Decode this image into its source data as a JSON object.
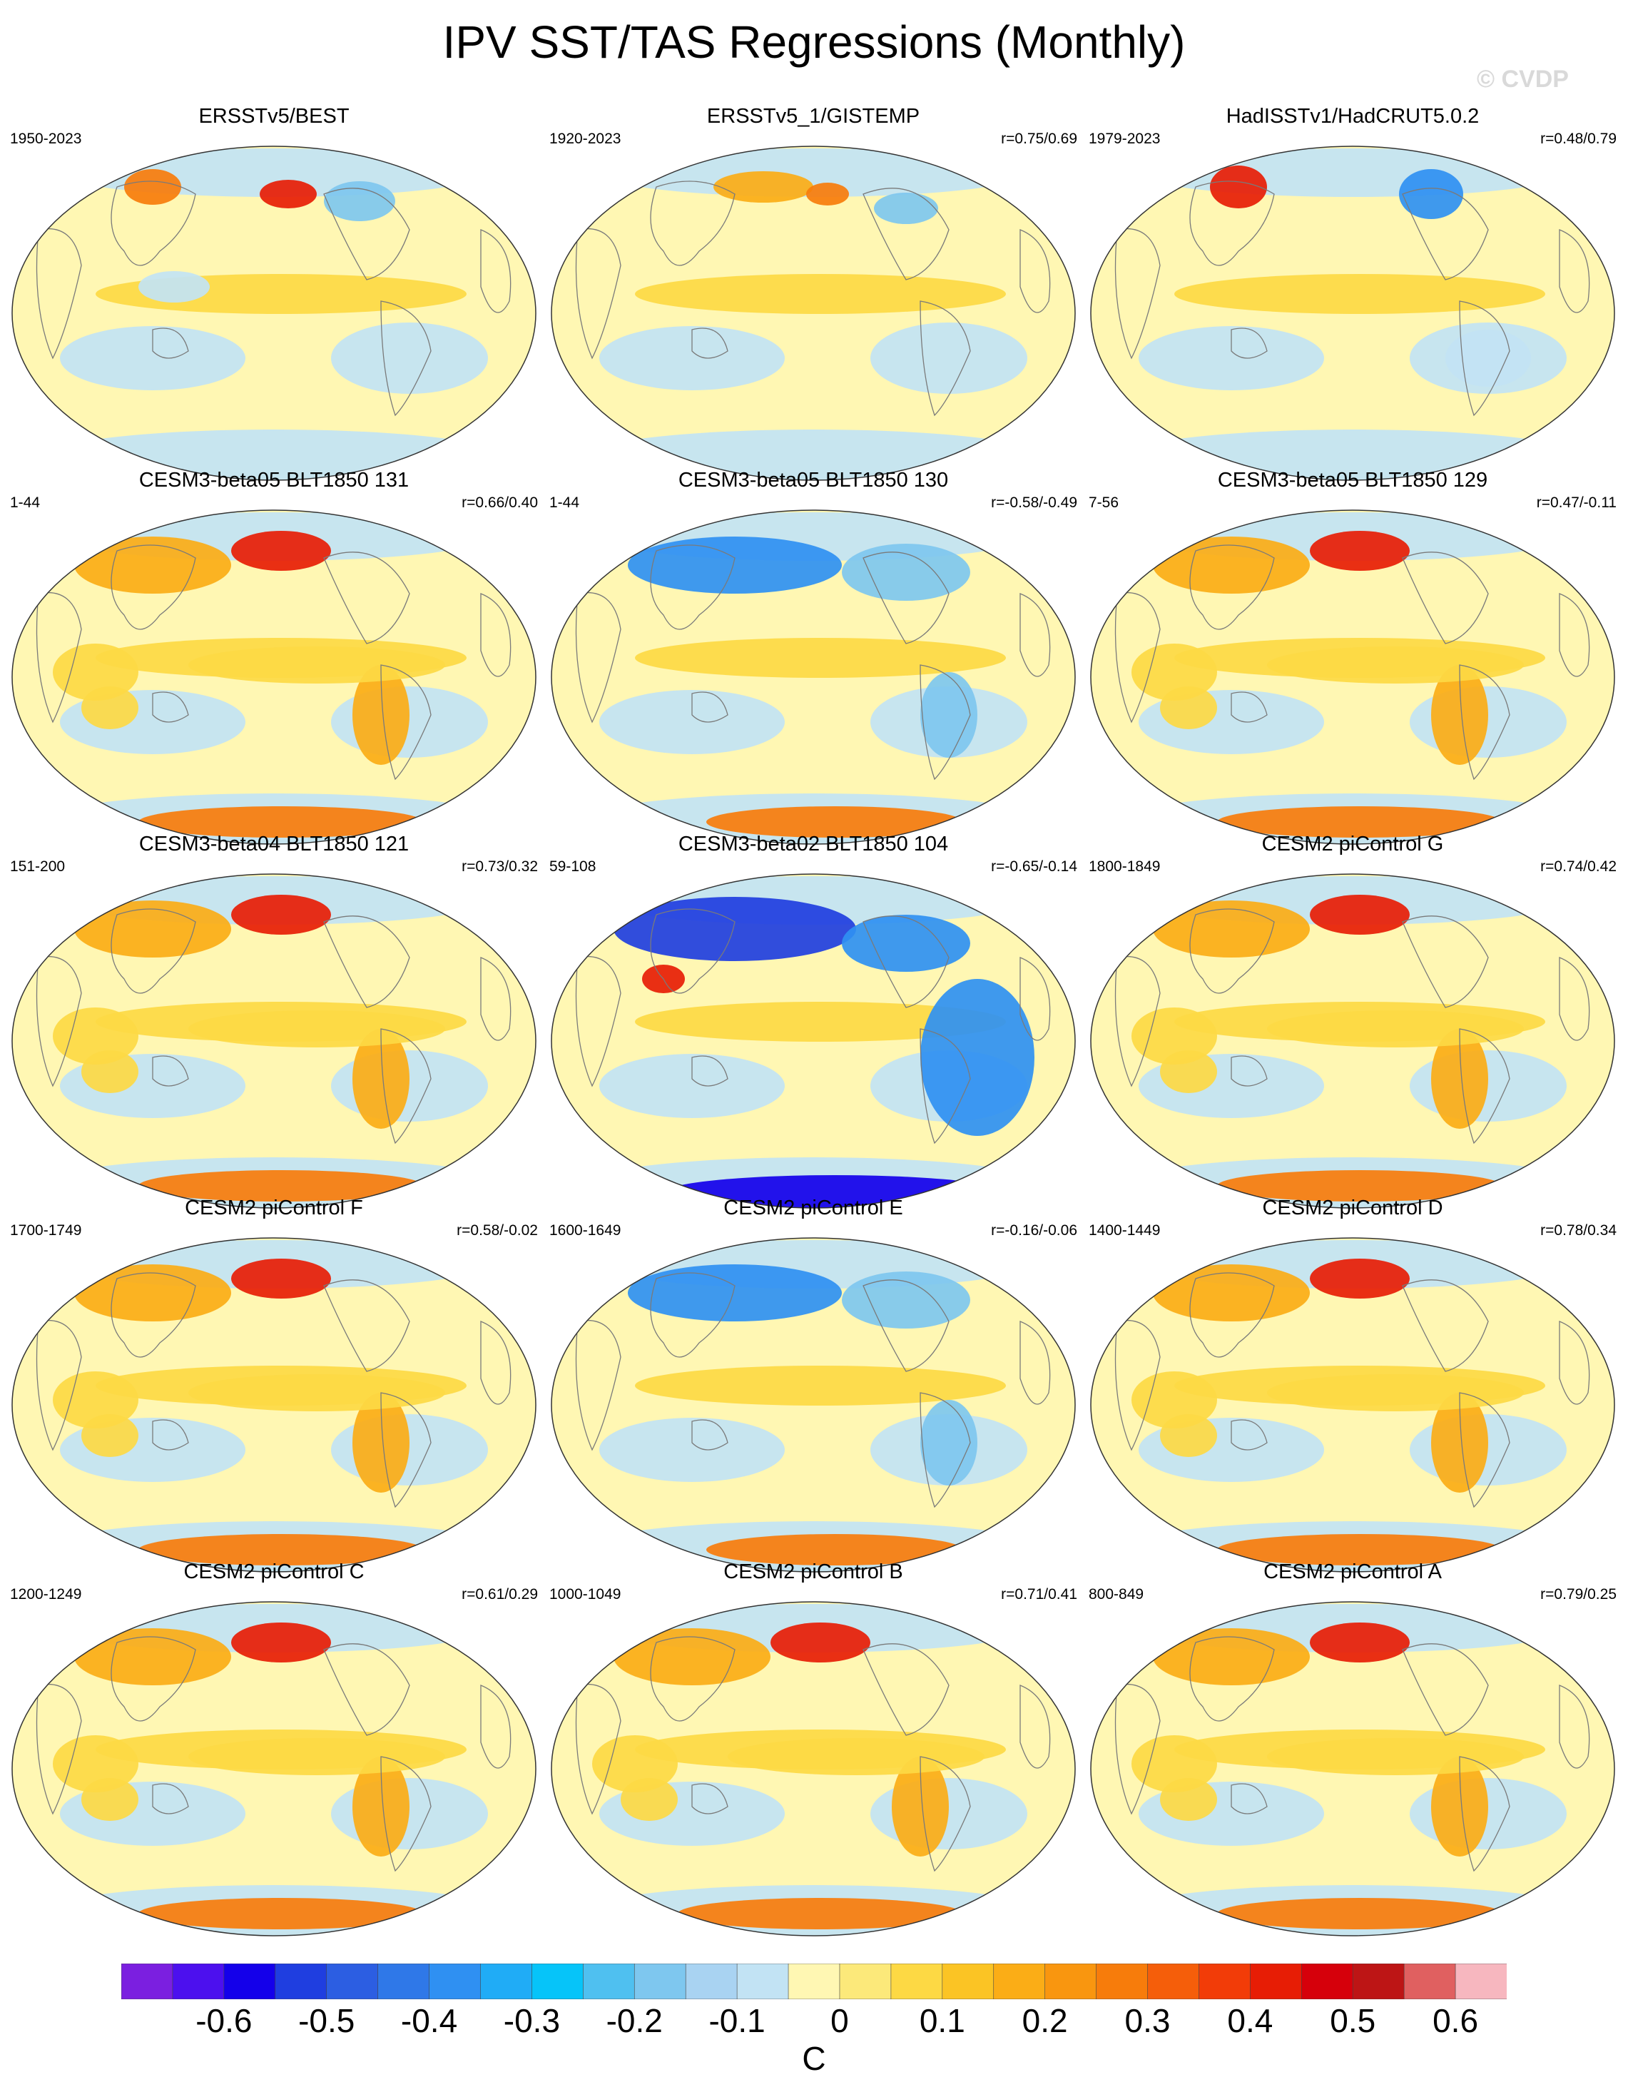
{
  "title": "IPV SST/TAS Regressions (Monthly)",
  "watermark": "© CVDP",
  "colorbar": {
    "units": "C",
    "tick_labels": [
      "-0.6",
      "-0.5",
      "-0.4",
      "-0.3",
      "-0.2",
      "-0.1",
      "0",
      "0.1",
      "0.2",
      "0.3",
      "0.4",
      "0.5",
      "0.6"
    ],
    "colors": [
      "#7b1fe0",
      "#4c10ee",
      "#1400ea",
      "#1f3ee0",
      "#2c5ee2",
      "#2f78e8",
      "#2f90f2",
      "#20acf6",
      "#06c4f9",
      "#4fc0f0",
      "#7ec7ef",
      "#a9d3f2",
      "#c2e3f4",
      "#fff7b3",
      "#fce97a",
      "#fdd944",
      "#fbc424",
      "#fbad16",
      "#f9960f",
      "#f77c0b",
      "#f55e0a",
      "#f23c08",
      "#e71d05",
      "#d6000b",
      "#bd1515",
      "#e06060",
      "#f7b7bf"
    ]
  },
  "panels": [
    {
      "title": "ERSSTv5/BEST",
      "period": "1950-2023",
      "corr": "",
      "pattern": "obs1"
    },
    {
      "title": "ERSSTv5_1/GISTEMP",
      "period": "1920-2023",
      "corr": "r=0.75/0.69",
      "pattern": "obs2"
    },
    {
      "title": "HadISSTv1/HadCRUT5.0.2",
      "period": "1979-2023",
      "corr": "r=0.48/0.79",
      "pattern": "obs3"
    },
    {
      "title": "CESM3-beta05 BLT1850 131",
      "period": "1-44",
      "corr": "r=0.66/0.40",
      "pattern": "warm"
    },
    {
      "title": "CESM3-beta05 BLT1850 130",
      "period": "1-44",
      "corr": "r=-0.58/-0.49",
      "pattern": "cool"
    },
    {
      "title": "CESM3-beta05 BLT1850 129",
      "period": "7-56",
      "corr": "r=0.47/-0.11",
      "pattern": "warm"
    },
    {
      "title": "CESM3-beta04 BLT1850 121",
      "period": "151-200",
      "corr": "r=0.73/0.32",
      "pattern": "warm"
    },
    {
      "title": "CESM3-beta02 BLT1850 104",
      "period": "59-108",
      "corr": "r=-0.65/-0.14",
      "pattern": "cold"
    },
    {
      "title": "CESM2 piControl G",
      "period": "1800-1849",
      "corr": "r=0.74/0.42",
      "pattern": "warm"
    },
    {
      "title": "CESM2 piControl F",
      "period": "1700-1749",
      "corr": "r=0.58/-0.02",
      "pattern": "warm"
    },
    {
      "title": "CESM2 piControl E",
      "period": "1600-1649",
      "corr": "r=-0.16/-0.06",
      "pattern": "cool"
    },
    {
      "title": "CESM2 piControl D",
      "period": "1400-1449",
      "corr": "r=0.78/0.34",
      "pattern": "warm"
    },
    {
      "title": "CESM2 piControl C",
      "period": "1200-1249",
      "corr": "r=0.61/0.29",
      "pattern": "warm"
    },
    {
      "title": "CESM2 piControl B",
      "period": "1000-1049",
      "corr": "r=0.71/0.41",
      "pattern": "warm"
    },
    {
      "title": "CESM2 piControl A",
      "period": "800-849",
      "corr": "r=0.79/0.25",
      "pattern": "warm"
    }
  ]
}
